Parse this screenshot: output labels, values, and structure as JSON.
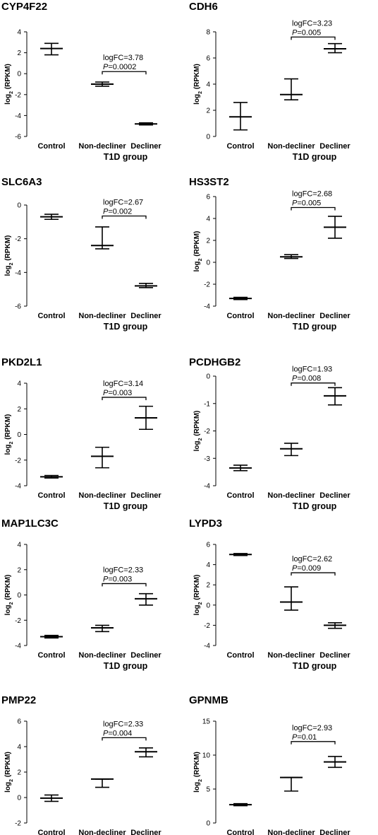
{
  "shared": {
    "ylabel_prefix": "log",
    "ylabel_sub": "2",
    "ylabel_suffix": " (RPKM)",
    "xlabel": "T1D group",
    "categories": [
      "Control",
      "Non-decliner",
      "Decliner"
    ]
  },
  "chart_data": [
    {
      "type": "scatter",
      "title": "CYP4F22",
      "ylim": [
        -6,
        4
      ],
      "yticks": [
        -6,
        -4,
        -2,
        0,
        2,
        4
      ],
      "points": [
        {
          "category": "Control",
          "mean": 2.4,
          "low": 1.8,
          "high": 2.9
        },
        {
          "category": "Non-decliner",
          "mean": -1.0,
          "low": -1.2,
          "high": -0.8
        },
        {
          "category": "Decliner",
          "mean": -4.8,
          "low": -4.9,
          "high": -4.7
        }
      ],
      "annotation": {
        "logfc": "logFC=3.78",
        "p_prefix": "P",
        "p_value": "=0.0002",
        "from": "Non-decliner",
        "to": "Decliner",
        "y": 0.2
      }
    },
    {
      "type": "scatter",
      "title": "CDH6",
      "ylim": [
        0,
        8
      ],
      "yticks": [
        0,
        2,
        4,
        6,
        8
      ],
      "points": [
        {
          "category": "Control",
          "mean": 1.5,
          "low": 0.5,
          "high": 2.6
        },
        {
          "category": "Non-decliner",
          "mean": 3.2,
          "low": 2.8,
          "high": 4.4
        },
        {
          "category": "Decliner",
          "mean": 6.7,
          "low": 6.4,
          "high": 7.1
        }
      ],
      "annotation": {
        "logfc": "logFC=3.23",
        "p_prefix": "P",
        "p_value": "=0.005",
        "from": "Non-decliner",
        "to": "Decliner",
        "y": 7.6
      }
    },
    {
      "type": "scatter",
      "title": "SLC6A3",
      "ylim": [
        -6,
        0
      ],
      "yticks": [
        -6,
        -4,
        -2,
        0
      ],
      "points": [
        {
          "category": "Control",
          "mean": -0.7,
          "low": -0.85,
          "high": -0.55
        },
        {
          "category": "Non-decliner",
          "mean": -2.4,
          "low": -2.6,
          "high": -1.3
        },
        {
          "category": "Decliner",
          "mean": -4.8,
          "low": -4.9,
          "high": -4.65
        }
      ],
      "annotation": {
        "logfc": "logFC=2.67",
        "p_prefix": "P",
        "p_value": "=0.002",
        "from": "Non-decliner",
        "to": "Decliner",
        "y": -0.65
      }
    },
    {
      "type": "scatter",
      "title": "HS3ST2",
      "ylim": [
        -4,
        6
      ],
      "yticks": [
        -4,
        -2,
        0,
        2,
        4,
        6
      ],
      "points": [
        {
          "category": "Control",
          "mean": -3.3,
          "low": -3.4,
          "high": -3.2
        },
        {
          "category": "Non-decliner",
          "mean": 0.5,
          "low": 0.35,
          "high": 0.7
        },
        {
          "category": "Decliner",
          "mean": 3.2,
          "low": 2.2,
          "high": 4.2
        }
      ],
      "annotation": {
        "logfc": "logFC=2.68",
        "p_prefix": "P",
        "p_value": "=0.005",
        "from": "Non-decliner",
        "to": "Decliner",
        "y": 5.0
      }
    },
    {
      "type": "scatter",
      "title": "PKD2L1",
      "ylim": [
        -4,
        4
      ],
      "yticks": [
        -4,
        -2,
        0,
        2,
        4
      ],
      "points": [
        {
          "category": "Control",
          "mean": -3.3,
          "low": -3.4,
          "high": -3.2
        },
        {
          "category": "Non-decliner",
          "mean": -1.7,
          "low": -2.6,
          "high": -1.0
        },
        {
          "category": "Decliner",
          "mean": 1.3,
          "low": 0.4,
          "high": 2.2
        }
      ],
      "annotation": {
        "logfc": "logFC=3.14",
        "p_prefix": "P",
        "p_value": "=0.003",
        "from": "Non-decliner",
        "to": "Decliner",
        "y": 2.9
      }
    },
    {
      "type": "scatter",
      "title": "PCDHGB2",
      "ylim": [
        -4,
        0
      ],
      "yticks": [
        -4,
        -3,
        -2,
        -1,
        0
      ],
      "points": [
        {
          "category": "Control",
          "mean": -3.35,
          "low": -3.45,
          "high": -3.25
        },
        {
          "category": "Non-decliner",
          "mean": -2.65,
          "low": -2.9,
          "high": -2.45
        },
        {
          "category": "Decliner",
          "mean": -0.72,
          "low": -1.05,
          "high": -0.42
        }
      ],
      "annotation": {
        "logfc": "logFC=1.93",
        "p_prefix": "P",
        "p_value": "=0.008",
        "from": "Non-decliner",
        "to": "Decliner",
        "y": -0.25
      }
    },
    {
      "type": "scatter",
      "title": "MAP1LC3C",
      "ylim": [
        -4,
        4
      ],
      "yticks": [
        -4,
        -2,
        0,
        2,
        4
      ],
      "points": [
        {
          "category": "Control",
          "mean": -3.3,
          "low": -3.4,
          "high": -3.2
        },
        {
          "category": "Non-decliner",
          "mean": -2.6,
          "low": -2.9,
          "high": -2.4
        },
        {
          "category": "Decliner",
          "mean": -0.3,
          "low": -0.8,
          "high": 0.1
        }
      ],
      "annotation": {
        "logfc": "logFC=2.33",
        "p_prefix": "P",
        "p_value": "=0.003",
        "from": "Non-decliner",
        "to": "Decliner",
        "y": 0.9
      }
    },
    {
      "type": "scatter",
      "title": "LYPD3",
      "ylim": [
        -4,
        6
      ],
      "yticks": [
        -4,
        -2,
        0,
        2,
        4,
        6
      ],
      "points": [
        {
          "category": "Control",
          "mean": 5.0,
          "low": 4.9,
          "high": 5.1
        },
        {
          "category": "Non-decliner",
          "mean": 0.3,
          "low": -0.5,
          "high": 1.8
        },
        {
          "category": "Decliner",
          "mean": -2.0,
          "low": -2.3,
          "high": -1.75
        }
      ],
      "annotation": {
        "logfc": "logFC=2.62",
        "p_prefix": "P",
        "p_value": "=0.009",
        "from": "Non-decliner",
        "to": "Decliner",
        "y": 3.2
      }
    },
    {
      "type": "scatter",
      "title": "PMP22",
      "ylim": [
        -2,
        6
      ],
      "yticks": [
        -2,
        0,
        2,
        4,
        6
      ],
      "points": [
        {
          "category": "Control",
          "mean": -0.05,
          "low": -0.3,
          "high": 0.2
        },
        {
          "category": "Non-decliner",
          "mean": 1.45,
          "low": 0.8,
          "high": 1.45
        },
        {
          "category": "Decliner",
          "mean": 3.6,
          "low": 3.2,
          "high": 3.9
        }
      ],
      "annotation": {
        "logfc": "logFC=2.33",
        "p_prefix": "P",
        "p_value": "=0.004",
        "from": "Non-decliner",
        "to": "Decliner",
        "y": 4.7
      }
    },
    {
      "type": "scatter",
      "title": "GPNMB",
      "ylim": [
        0,
        15
      ],
      "yticks": [
        0,
        5,
        10,
        15
      ],
      "points": [
        {
          "category": "Control",
          "mean": 2.7,
          "low": 2.55,
          "high": 2.85
        },
        {
          "category": "Non-decliner",
          "mean": 6.7,
          "low": 4.7,
          "high": 6.7
        },
        {
          "category": "Decliner",
          "mean": 9.0,
          "low": 8.2,
          "high": 9.8
        }
      ],
      "annotation": {
        "logfc": "logFC=2.93",
        "p_prefix": "P",
        "p_value": "=0.01",
        "from": "Non-decliner",
        "to": "Decliner",
        "y": 12.0
      }
    }
  ]
}
